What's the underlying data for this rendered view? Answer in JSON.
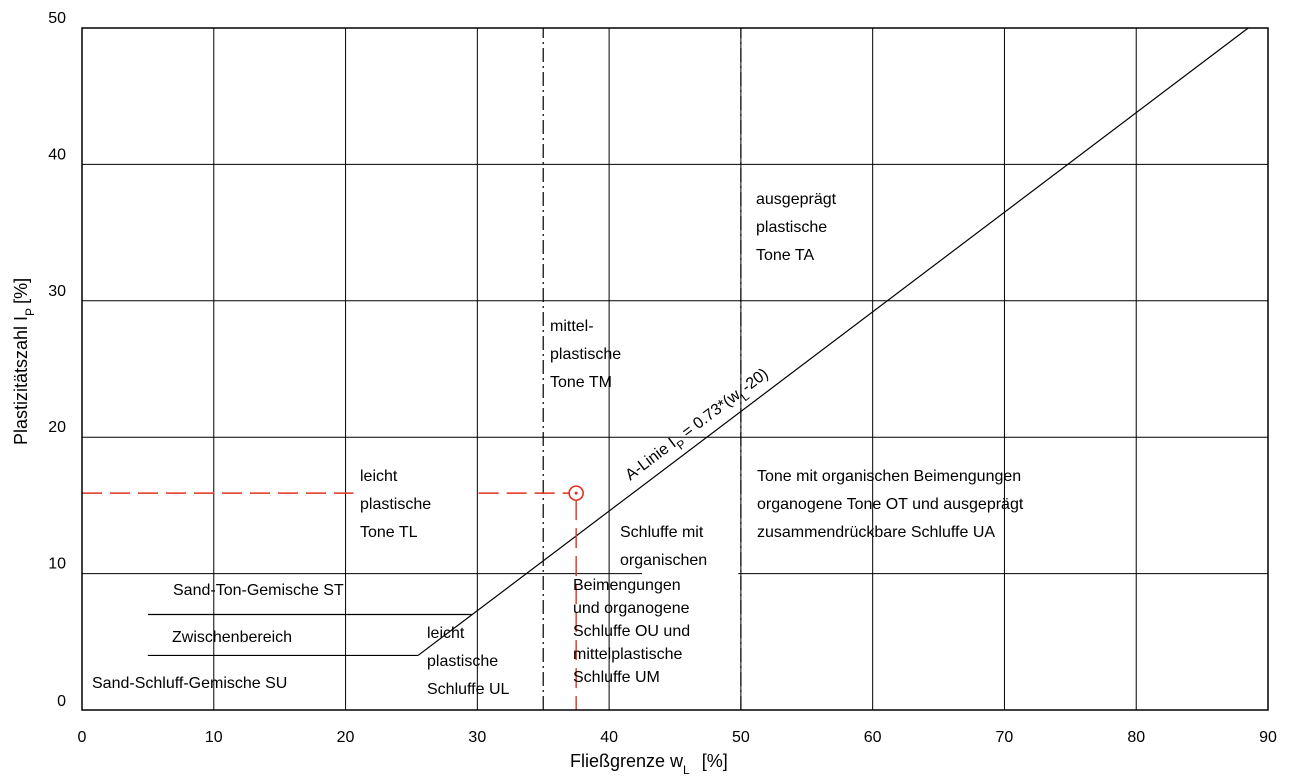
{
  "chart_data": {
    "type": "line",
    "xlabel": "Fließgrenze w",
    "xlabel_sub": "L",
    "xlabel_unit": "[%]",
    "ylabel": "Plastizitätszahl I",
    "ylabel_sub": "P",
    "ylabel_unit": "[%]",
    "xlim": [
      0,
      90
    ],
    "ylim": [
      0,
      50
    ],
    "xticks": [
      0,
      10,
      20,
      30,
      40,
      50,
      60,
      70,
      80,
      90
    ],
    "yticks": [
      0,
      10,
      20,
      30,
      40,
      50
    ],
    "grid": true,
    "a_line": {
      "label_prefix": "A-Linie I",
      "label_sub1": "P",
      "label_mid": " = 0.73*(w",
      "label_sub2": "L",
      "label_end": "-20)",
      "points": [
        [
          25.5,
          4
        ],
        [
          88.5,
          50
        ]
      ]
    },
    "boundaries": [
      {
        "name": "wL=35",
        "x": 35,
        "y": [
          0,
          50
        ],
        "style": "dashdot"
      },
      {
        "name": "wL=50",
        "x": 50,
        "y": [
          0,
          50
        ],
        "style": "dashdot"
      },
      {
        "name": "ST upper",
        "points": [
          [
            5,
            7
          ],
          [
            29.6,
            7
          ]
        ],
        "style": "solid"
      },
      {
        "name": "SU/ST lower",
        "points": [
          [
            5,
            4
          ],
          [
            25.5,
            4
          ]
        ],
        "style": "solid"
      }
    ],
    "sample_point": {
      "x": 37.5,
      "y": 15.9,
      "color": "#e0301e"
    },
    "regions": [
      {
        "lines": [
          "leicht",
          "plastische",
          "Tone TL"
        ]
      },
      {
        "lines": [
          "mittel-",
          "plastische",
          "Tone TM"
        ]
      },
      {
        "lines": [
          "ausgeprägt",
          "plastische",
          "Tone TA"
        ]
      },
      {
        "lines": [
          "Tone mit organischen Beimengungen",
          "organogene Tone OT und ausgeprägt",
          "zusammendrückbare Schluffe UA"
        ]
      },
      {
        "lines": [
          "Schluffe mit",
          "organischen"
        ]
      },
      {
        "lines": [
          "Beimengungen",
          "und organogene",
          "Schluffe OU und",
          "mittelplastische",
          "Schluffe UM"
        ]
      },
      {
        "lines": [
          "leicht",
          "plastische",
          "Schluffe UL"
        ]
      },
      {
        "lines": [
          "Sand-Ton-Gemische ST"
        ]
      },
      {
        "lines": [
          "Zwischenbereich"
        ]
      },
      {
        "lines": [
          "Sand-Schluff-Gemische SU"
        ]
      }
    ]
  }
}
